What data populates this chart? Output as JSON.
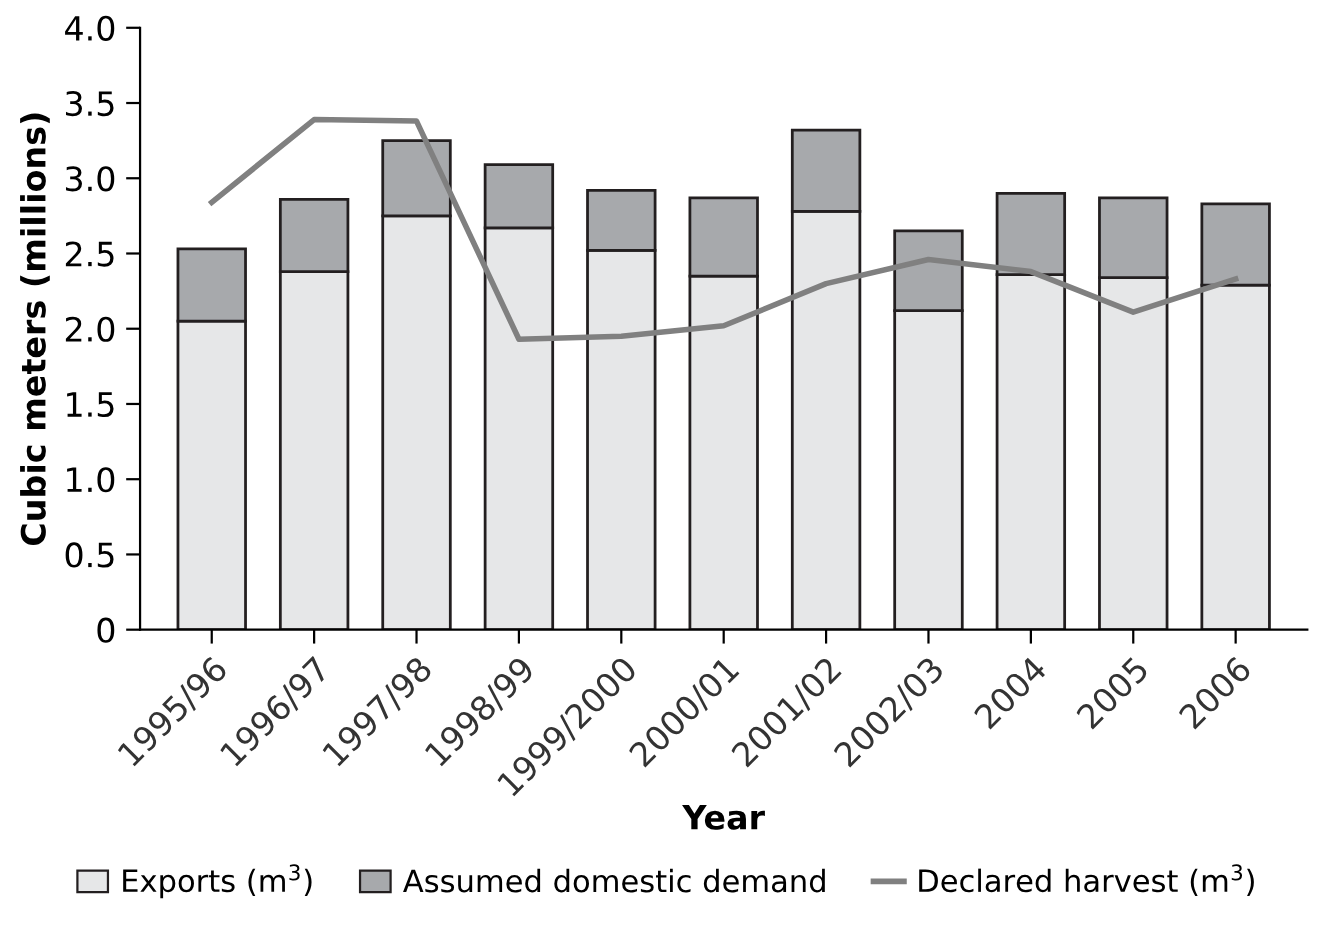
{
  "chart_data": {
    "type": "bar",
    "stacked": true,
    "xlabel": "Year",
    "ylabel": "Cubic meters (millions)",
    "categories": [
      "1995/96",
      "1996/97",
      "1997/98",
      "1998/99",
      "1999/2000",
      "2000/01",
      "2001/02",
      "2002/03",
      "2004",
      "2005",
      "2006"
    ],
    "series": [
      {
        "name": "Exports (m$^{3}$)",
        "color": "#e6e7e8",
        "values": [
          2.05,
          2.38,
          2.75,
          2.67,
          2.52,
          2.35,
          2.78,
          2.12,
          2.36,
          2.34,
          2.29
        ]
      },
      {
        "name": "Assumed domestic demand",
        "color": "#a7a9ac",
        "values": [
          0.48,
          0.48,
          0.5,
          0.42,
          0.4,
          0.52,
          0.54,
          0.53,
          0.54,
          0.53,
          0.54
        ]
      },
      {
        "name": "Declared harvest (m$^{3}$)",
        "type": "line",
        "color": "#808080",
        "values": [
          2.84,
          3.39,
          3.38,
          1.93,
          1.95,
          2.02,
          2.3,
          2.46,
          2.38,
          2.11,
          2.33
        ]
      }
    ],
    "ylim": [
      0,
      4.0
    ],
    "yticks": [
      {
        "value": 0,
        "label": "0"
      },
      {
        "value": 0.5,
        "label": "0.5"
      },
      {
        "value": 1.0,
        "label": "1.0"
      },
      {
        "value": 1.5,
        "label": "1.5"
      },
      {
        "value": 2.0,
        "label": "2.0"
      },
      {
        "value": 2.5,
        "label": "2.5"
      },
      {
        "value": 3.0,
        "label": "3.0"
      },
      {
        "value": 3.5,
        "label": "3.5"
      },
      {
        "value": 4.0,
        "label": "4.0"
      }
    ],
    "grid": false,
    "legend": "bottom"
  }
}
